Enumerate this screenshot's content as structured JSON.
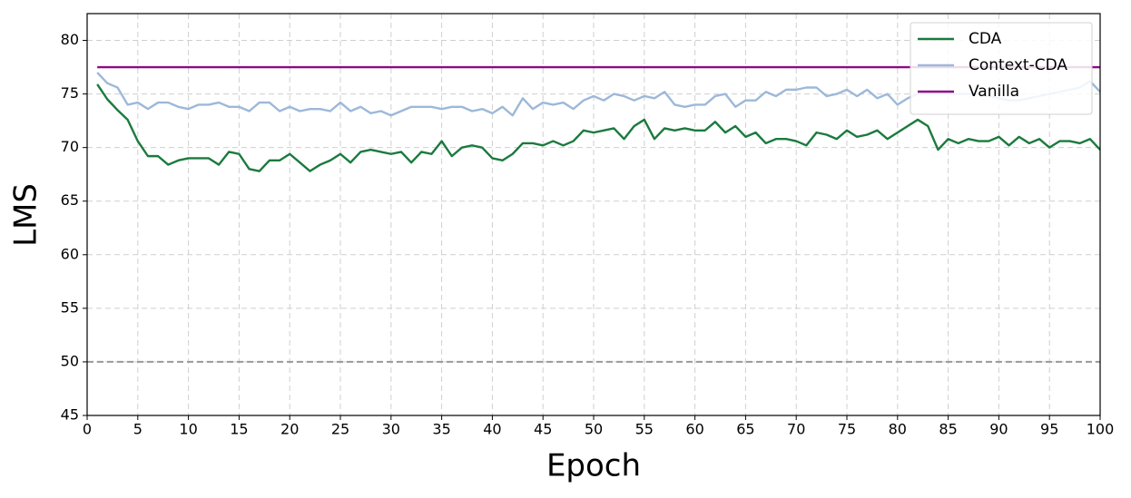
{
  "chart_data": {
    "type": "line",
    "xlabel": "Epoch",
    "ylabel": "LMS",
    "x": [
      1,
      2,
      3,
      4,
      5,
      6,
      7,
      8,
      9,
      10,
      11,
      12,
      13,
      14,
      15,
      16,
      17,
      18,
      19,
      20,
      21,
      22,
      23,
      24,
      25,
      26,
      27,
      28,
      29,
      30,
      31,
      32,
      33,
      34,
      35,
      36,
      37,
      38,
      39,
      40,
      41,
      42,
      43,
      44,
      45,
      46,
      47,
      48,
      49,
      50,
      51,
      52,
      53,
      54,
      55,
      56,
      57,
      58,
      59,
      60,
      61,
      62,
      63,
      64,
      65,
      66,
      67,
      68,
      69,
      70,
      71,
      72,
      73,
      74,
      75,
      76,
      77,
      78,
      79,
      80,
      81,
      82,
      83,
      84,
      85,
      86,
      87,
      88,
      89,
      90,
      91,
      92,
      93,
      94,
      95,
      96,
      97,
      98,
      99,
      100
    ],
    "series": [
      {
        "name": "CDA",
        "color": "#1b7a3e",
        "values": [
          75.9,
          74.5,
          73.5,
          72.6,
          70.6,
          69.2,
          69.2,
          68.4,
          68.8,
          69.0,
          69.0,
          69.0,
          68.4,
          69.6,
          69.4,
          68.0,
          67.8,
          68.8,
          68.8,
          69.4,
          68.6,
          67.8,
          68.4,
          68.8,
          69.4,
          68.6,
          69.6,
          69.8,
          69.6,
          69.4,
          69.6,
          68.6,
          69.6,
          69.4,
          70.6,
          69.2,
          70.0,
          70.2,
          70.0,
          69.0,
          68.8,
          69.4,
          70.4,
          70.4,
          70.2,
          70.6,
          70.2,
          70.6,
          71.6,
          71.4,
          71.6,
          71.8,
          70.8,
          72.0,
          72.6,
          70.8,
          71.8,
          71.6,
          71.8,
          71.6,
          71.6,
          72.4,
          71.4,
          72.0,
          71.0,
          71.4,
          70.4,
          70.8,
          70.8,
          70.6,
          70.2,
          71.4,
          71.2,
          70.8,
          71.6,
          71.0,
          71.2,
          71.6,
          70.8,
          71.4,
          72.0,
          72.6,
          72.0,
          69.8,
          70.8,
          70.4,
          70.8,
          70.6,
          70.6,
          71.0,
          70.2,
          71.0,
          70.4,
          70.8,
          70.0,
          70.6,
          70.6,
          70.4,
          70.8,
          69.8
        ]
      },
      {
        "name": "Context-CDA",
        "color": "#9db8d9",
        "values": [
          77.0,
          76.0,
          75.6,
          74.0,
          74.2,
          73.6,
          74.2,
          74.2,
          73.8,
          73.6,
          74.0,
          74.0,
          74.2,
          73.8,
          73.8,
          73.4,
          74.2,
          74.2,
          73.4,
          73.8,
          73.4,
          73.6,
          73.6,
          73.4,
          74.2,
          73.4,
          73.8,
          73.2,
          73.4,
          73.0,
          73.4,
          73.8,
          73.8,
          73.8,
          73.6,
          73.8,
          73.8,
          73.4,
          73.6,
          73.2,
          73.8,
          73.0,
          74.6,
          73.6,
          74.2,
          74.0,
          74.2,
          73.6,
          74.4,
          74.8,
          74.4,
          75.0,
          74.8,
          74.4,
          74.8,
          74.6,
          75.2,
          74.0,
          73.8,
          74.0,
          74.0,
          74.8,
          75.0,
          73.8,
          74.4,
          74.4,
          75.2,
          74.8,
          75.4,
          75.4,
          75.6,
          75.6,
          74.8,
          75.0,
          75.4,
          74.8,
          75.4,
          74.6,
          75.0,
          74.0,
          74.6,
          75.0,
          75.0,
          75.0,
          75.0,
          75.0,
          75.0,
          75.0,
          74.8,
          74.6,
          74.4,
          74.4,
          74.6,
          74.8,
          75.0,
          75.2,
          75.4,
          75.6,
          76.2,
          75.2
        ]
      },
      {
        "name": "Vanilla",
        "color": "#8e0a86",
        "x": [
          1,
          100
        ],
        "values": [
          77.5,
          77.5
        ]
      }
    ],
    "reference_line": {
      "y": 50,
      "color": "#999999",
      "dashed": true
    },
    "xlim": [
      0,
      100
    ],
    "xticks": [
      0,
      5,
      10,
      15,
      20,
      25,
      30,
      35,
      40,
      45,
      50,
      55,
      60,
      65,
      70,
      75,
      80,
      85,
      90,
      95,
      100
    ],
    "ylim": [
      45,
      82.5
    ],
    "yticks": [
      45,
      50,
      55,
      60,
      65,
      70,
      75,
      80
    ],
    "grid": true,
    "legend": "upper right"
  }
}
